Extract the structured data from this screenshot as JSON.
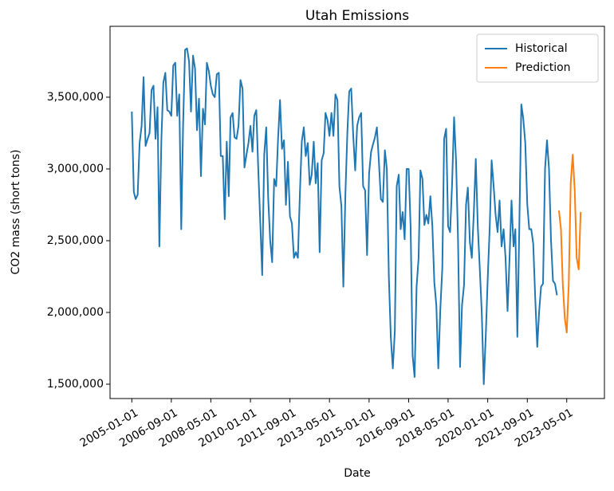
{
  "chart_data": {
    "type": "line",
    "title": "Utah Emissions",
    "x_label": "Date",
    "y_label": "CO2 mass (short tons)",
    "xlim": [
      "2004-02-01",
      "2024-12-01"
    ],
    "xticks": [
      "2005-01-01",
      "2006-09-01",
      "2008-05-01",
      "2010-01-01",
      "2011-09-01",
      "2013-05-01",
      "2015-01-01",
      "2016-09-01",
      "2018-05-01",
      "2020-01-01",
      "2021-09-01",
      "2023-05-01"
    ],
    "ylim": [
      1400000,
      3994000
    ],
    "yticks": [
      {
        "value": 1500000,
        "label": "1,500,000"
      },
      {
        "value": 2000000,
        "label": "2,000,000"
      },
      {
        "value": 2500000,
        "label": "2,500,000"
      },
      {
        "value": 3000000,
        "label": "3,000,000"
      },
      {
        "value": 3500000,
        "label": "3,500,000"
      }
    ],
    "grid": false,
    "legend": "upper right",
    "series": [
      {
        "name": "Historical",
        "color": "#1f77b4",
        "x": [
          "2005-01-01",
          "2005-02-01",
          "2005-03-01",
          "2005-04-01",
          "2005-05-01",
          "2005-06-01",
          "2005-07-01",
          "2005-08-01",
          "2005-09-01",
          "2005-10-01",
          "2005-11-01",
          "2005-12-01",
          "2006-01-01",
          "2006-02-01",
          "2006-03-01",
          "2006-04-01",
          "2006-05-01",
          "2006-06-01",
          "2006-07-01",
          "2006-08-01",
          "2006-09-01",
          "2006-10-01",
          "2006-11-01",
          "2006-12-01",
          "2007-01-01",
          "2007-02-01",
          "2007-03-01",
          "2007-04-01",
          "2007-05-01",
          "2007-06-01",
          "2007-07-01",
          "2007-08-01",
          "2007-09-01",
          "2007-10-01",
          "2007-11-01",
          "2007-12-01",
          "2008-01-01",
          "2008-02-01",
          "2008-03-01",
          "2008-04-01",
          "2008-05-01",
          "2008-06-01",
          "2008-07-01",
          "2008-08-01",
          "2008-09-01",
          "2008-10-01",
          "2008-11-01",
          "2008-12-01",
          "2009-01-01",
          "2009-02-01",
          "2009-03-01",
          "2009-04-01",
          "2009-05-01",
          "2009-06-01",
          "2009-07-01",
          "2009-08-01",
          "2009-09-01",
          "2009-10-01",
          "2009-11-01",
          "2009-12-01",
          "2010-01-01",
          "2010-02-01",
          "2010-03-01",
          "2010-04-01",
          "2010-05-01",
          "2010-06-01",
          "2010-07-01",
          "2010-08-01",
          "2010-09-01",
          "2010-10-01",
          "2010-11-01",
          "2010-12-01",
          "2011-01-01",
          "2011-02-01",
          "2011-03-01",
          "2011-04-01",
          "2011-05-01",
          "2011-06-01",
          "2011-07-01",
          "2011-08-01",
          "2011-09-01",
          "2011-10-01",
          "2011-11-01",
          "2011-12-01",
          "2012-01-01",
          "2012-02-01",
          "2012-03-01",
          "2012-04-01",
          "2012-05-01",
          "2012-06-01",
          "2012-07-01",
          "2012-08-01",
          "2012-09-01",
          "2012-10-01",
          "2012-11-01",
          "2012-12-01",
          "2013-01-01",
          "2013-02-01",
          "2013-03-01",
          "2013-04-01",
          "2013-05-01",
          "2013-06-01",
          "2013-07-01",
          "2013-08-01",
          "2013-09-01",
          "2013-10-01",
          "2013-11-01",
          "2013-12-01",
          "2014-01-01",
          "2014-02-01",
          "2014-03-01",
          "2014-04-01",
          "2014-05-01",
          "2014-06-01",
          "2014-07-01",
          "2014-08-01",
          "2014-09-01",
          "2014-10-01",
          "2014-11-01",
          "2014-12-01",
          "2015-01-01",
          "2015-02-01",
          "2015-03-01",
          "2015-04-01",
          "2015-05-01",
          "2015-06-01",
          "2015-07-01",
          "2015-08-01",
          "2015-09-01",
          "2015-10-01",
          "2015-11-01",
          "2015-12-01",
          "2016-01-01",
          "2016-02-01",
          "2016-03-01",
          "2016-04-01",
          "2016-05-01",
          "2016-06-01",
          "2016-07-01",
          "2016-08-01",
          "2016-09-01",
          "2016-10-01",
          "2016-11-01",
          "2016-12-01",
          "2017-01-01",
          "2017-02-01",
          "2017-03-01",
          "2017-04-01",
          "2017-05-01",
          "2017-06-01",
          "2017-07-01",
          "2017-08-01",
          "2017-09-01",
          "2017-10-01",
          "2017-11-01",
          "2017-12-01",
          "2018-01-01",
          "2018-02-01",
          "2018-03-01",
          "2018-04-01",
          "2018-05-01",
          "2018-06-01",
          "2018-07-01",
          "2018-08-01",
          "2018-09-01",
          "2018-10-01",
          "2018-11-01",
          "2018-12-01",
          "2019-01-01",
          "2019-02-01",
          "2019-03-01",
          "2019-04-01",
          "2019-05-01",
          "2019-06-01",
          "2019-07-01",
          "2019-08-01",
          "2019-09-01",
          "2019-10-01",
          "2019-11-01",
          "2019-12-01",
          "2020-01-01",
          "2020-02-01",
          "2020-03-01",
          "2020-04-01",
          "2020-05-01",
          "2020-06-01",
          "2020-07-01",
          "2020-08-01",
          "2020-09-01",
          "2020-10-01",
          "2020-11-01",
          "2020-12-01",
          "2021-01-01",
          "2021-02-01",
          "2021-03-01",
          "2021-04-01",
          "2021-05-01",
          "2021-06-01",
          "2021-07-01",
          "2021-08-01",
          "2021-09-01",
          "2021-10-01",
          "2021-11-01",
          "2021-12-01",
          "2022-01-01",
          "2022-02-01",
          "2022-03-01",
          "2022-04-01",
          "2022-05-01",
          "2022-06-01",
          "2022-07-01",
          "2022-08-01",
          "2022-09-01",
          "2022-10-01",
          "2022-11-01",
          "2022-12-01"
        ],
        "values": [
          3400000,
          2840000,
          2790000,
          2820000,
          3180000,
          3300000,
          3640000,
          3160000,
          3210000,
          3250000,
          3550000,
          3580000,
          3210000,
          3430000,
          2460000,
          3200000,
          3600000,
          3670000,
          3410000,
          3400000,
          3370000,
          3720000,
          3740000,
          3370000,
          3520000,
          2580000,
          3300000,
          3830000,
          3840000,
          3750000,
          3400000,
          3790000,
          3700000,
          3270000,
          3490000,
          2950000,
          3420000,
          3310000,
          3740000,
          3680000,
          3580000,
          3520000,
          3500000,
          3660000,
          3670000,
          3090000,
          3090000,
          2650000,
          3190000,
          2810000,
          3360000,
          3390000,
          3220000,
          3210000,
          3300000,
          3620000,
          3560000,
          3010000,
          3100000,
          3180000,
          3300000,
          3120000,
          3370000,
          3410000,
          3000000,
          2630000,
          2260000,
          3100000,
          3290000,
          2800000,
          2500000,
          2350000,
          2930000,
          2880000,
          3200000,
          3480000,
          3140000,
          3200000,
          2750000,
          3050000,
          2670000,
          2620000,
          2380000,
          2420000,
          2380000,
          2830000,
          3190000,
          3290000,
          3090000,
          3180000,
          2890000,
          2960000,
          3190000,
          2900000,
          3040000,
          2420000,
          3060000,
          3110000,
          3390000,
          3340000,
          3230000,
          3390000,
          3230000,
          3520000,
          3480000,
          2880000,
          2740000,
          2180000,
          2820000,
          3260000,
          3540000,
          3560000,
          3240000,
          2990000,
          3300000,
          3360000,
          3390000,
          2880000,
          2850000,
          2400000,
          2970000,
          3120000,
          3170000,
          3220000,
          3290000,
          3050000,
          2790000,
          2770000,
          3130000,
          3000000,
          2250000,
          1830000,
          1610000,
          1870000,
          2880000,
          2960000,
          2580000,
          2700000,
          2510000,
          3000000,
          3000000,
          2600000,
          1700000,
          1550000,
          2180000,
          2380000,
          2990000,
          2930000,
          2610000,
          2680000,
          2620000,
          2810000,
          2600000,
          2210000,
          2050000,
          1610000,
          2020000,
          2310000,
          3210000,
          3280000,
          2600000,
          2560000,
          2890000,
          3360000,
          3050000,
          2500000,
          1620000,
          2050000,
          2190000,
          2750000,
          2870000,
          2490000,
          2380000,
          2700000,
          3070000,
          2600000,
          2300000,
          2000000,
          1500000,
          1830000,
          2240000,
          2600000,
          3060000,
          2880000,
          2680000,
          2560000,
          2780000,
          2460000,
          2580000,
          2380000,
          2010000,
          2370000,
          2780000,
          2460000,
          2580000,
          1830000,
          2600000,
          3450000,
          3350000,
          3180000,
          2750000,
          2580000,
          2580000,
          2480000,
          2100000,
          1760000,
          2000000,
          2180000,
          2200000,
          3000000,
          3200000,
          3000000,
          2500000,
          2220000,
          2200000,
          2120000
        ]
      },
      {
        "name": "Prediction",
        "color": "#ff7f0e",
        "x": [
          "2023-01-01",
          "2023-02-01",
          "2023-03-01",
          "2023-04-01",
          "2023-05-01",
          "2023-06-01",
          "2023-07-01",
          "2023-08-01",
          "2023-09-01",
          "2023-10-01",
          "2023-11-01",
          "2023-12-01"
        ],
        "values": [
          2710000,
          2580000,
          2200000,
          1960000,
          1860000,
          2200000,
          2900000,
          3100000,
          2850000,
          2380000,
          2300000,
          2700000
        ]
      }
    ]
  }
}
